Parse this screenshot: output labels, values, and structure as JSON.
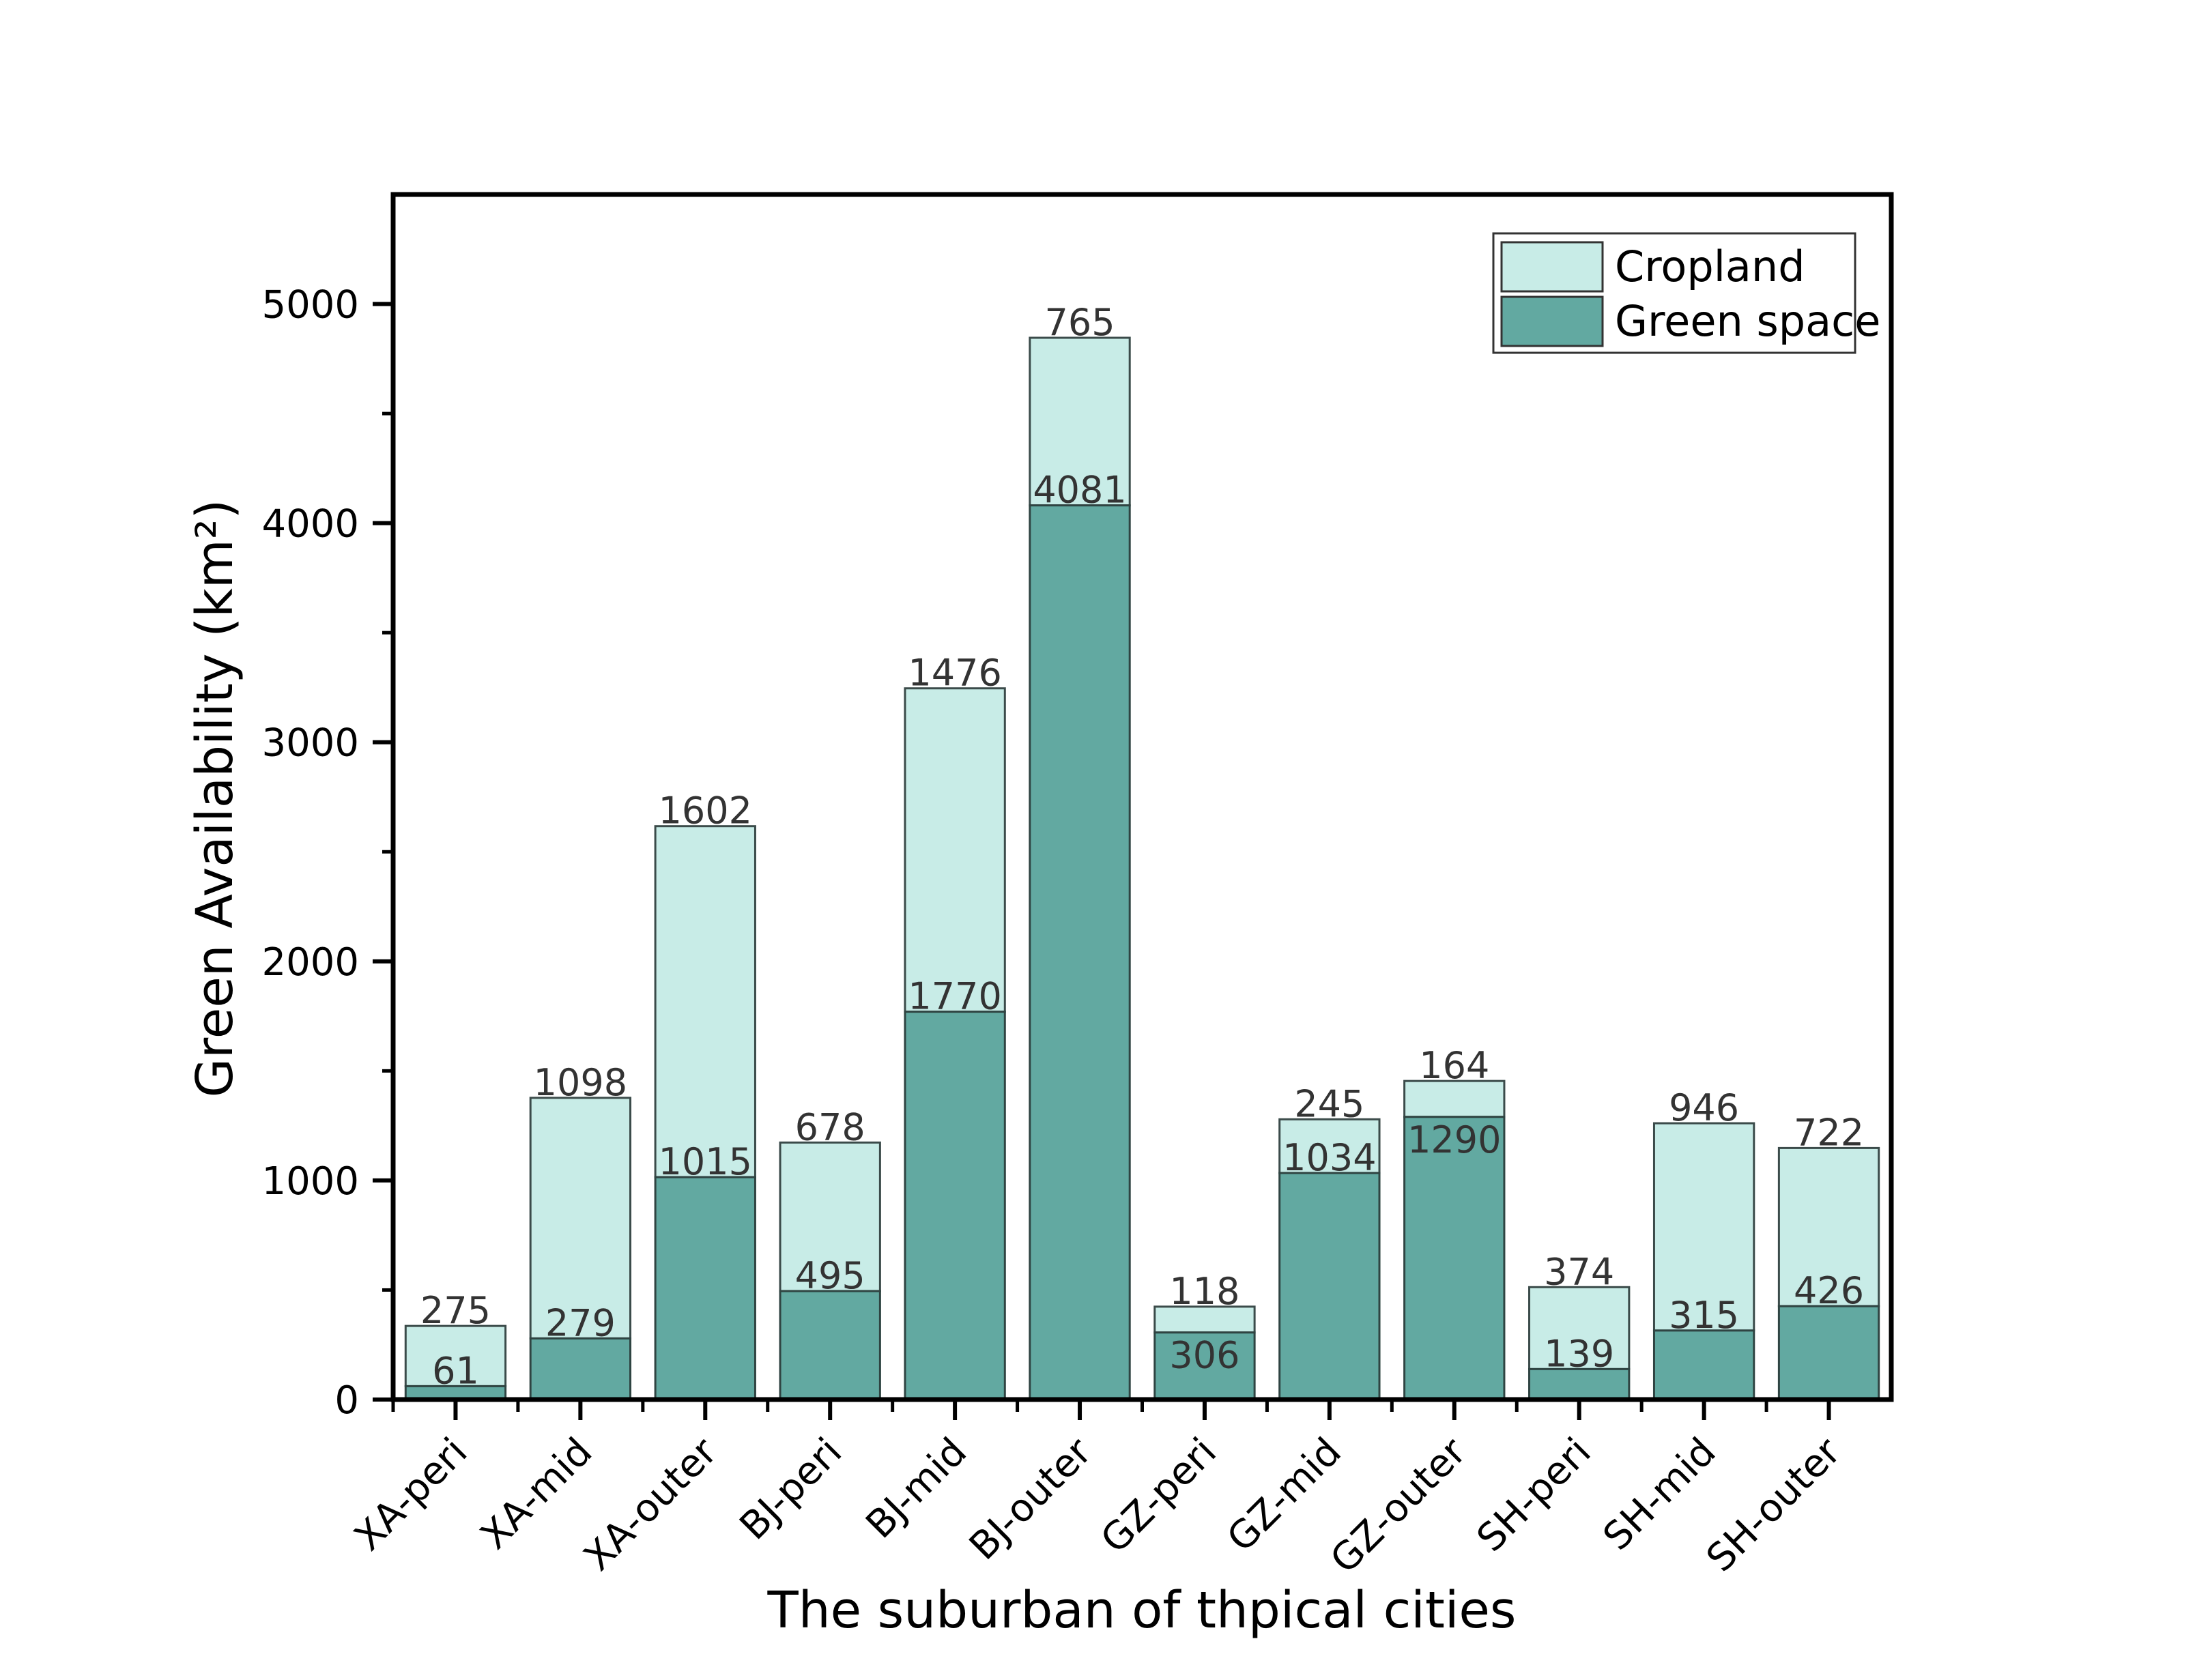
{
  "chart_data": {
    "type": "bar",
    "stacked": true,
    "title": "",
    "xlabel": "The suburban of thpical cities",
    "ylabel": "Green Availability (km²)",
    "ylim": [
      0,
      5500
    ],
    "yticks": [
      0,
      1000,
      2000,
      3000,
      4000,
      5000
    ],
    "categories": [
      "XA-peri",
      "XA-mid",
      "XA-outer",
      "BJ-peri",
      "BJ-mid",
      "BJ-outer",
      "GZ-peri",
      "GZ-mid",
      "GZ-outer",
      "SH-peri",
      "SH-mid",
      "SH-outer"
    ],
    "series": [
      {
        "name": "Green space",
        "color": "#62a9a1",
        "values": [
          61,
          279,
          1015,
          495,
          1770,
          4081,
          306,
          1034,
          1290,
          139,
          315,
          426
        ]
      },
      {
        "name": "Cropland",
        "color": "#c8ece7",
        "values": [
          275,
          1098,
          1602,
          678,
          1476,
          765,
          118,
          245,
          164,
          374,
          946,
          722
        ]
      }
    ],
    "legend": {
      "placement": "top-right",
      "entries": [
        "Cropland",
        "Green space"
      ]
    },
    "grid": false
  }
}
